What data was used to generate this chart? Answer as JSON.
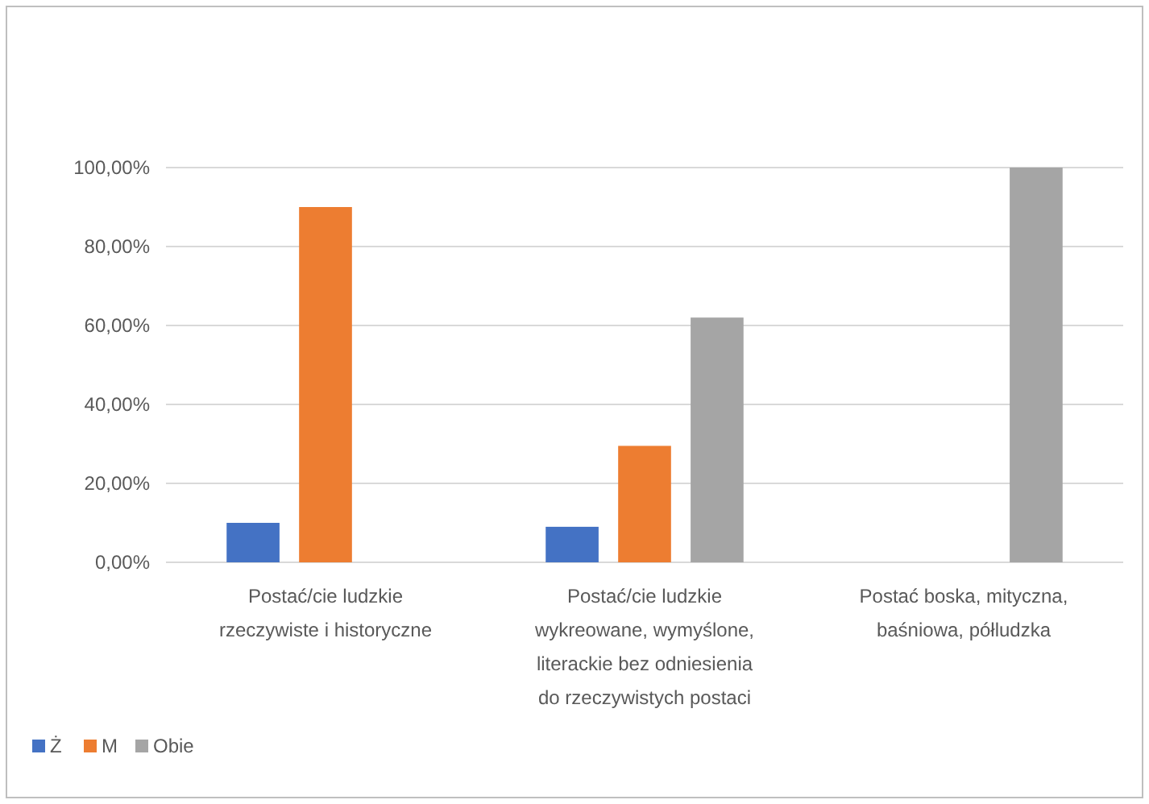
{
  "chart_data": {
    "type": "bar",
    "categories": [
      "Postać/cie ludzkie rzeczywiste i historyczne",
      "Postać/cie ludzkie wykreowane, wymyślone, literackie bez odniesienia do rzeczywistych postaci",
      "Postać boska, mityczna, baśniowa, półludzka"
    ],
    "series": [
      {
        "name": "Ż",
        "color": "#4472c4",
        "values": [
          10,
          9,
          0
        ]
      },
      {
        "name": "M",
        "color": "#ed7d31",
        "values": [
          90,
          29.5,
          0
        ]
      },
      {
        "name": "Obie",
        "color": "#a5a5a5",
        "values": [
          0,
          62,
          100
        ]
      }
    ],
    "ylim": [
      0,
      100
    ],
    "yticks": [
      {
        "value": 0,
        "label": "0,00%"
      },
      {
        "value": 20,
        "label": "20,00%"
      },
      {
        "value": 40,
        "label": "40,00%"
      },
      {
        "value": 60,
        "label": "60,00%"
      },
      {
        "value": 80,
        "label": "80,00%"
      },
      {
        "value": 100,
        "label": "100,00%"
      }
    ],
    "grid": "y",
    "legend": "bottom left"
  }
}
